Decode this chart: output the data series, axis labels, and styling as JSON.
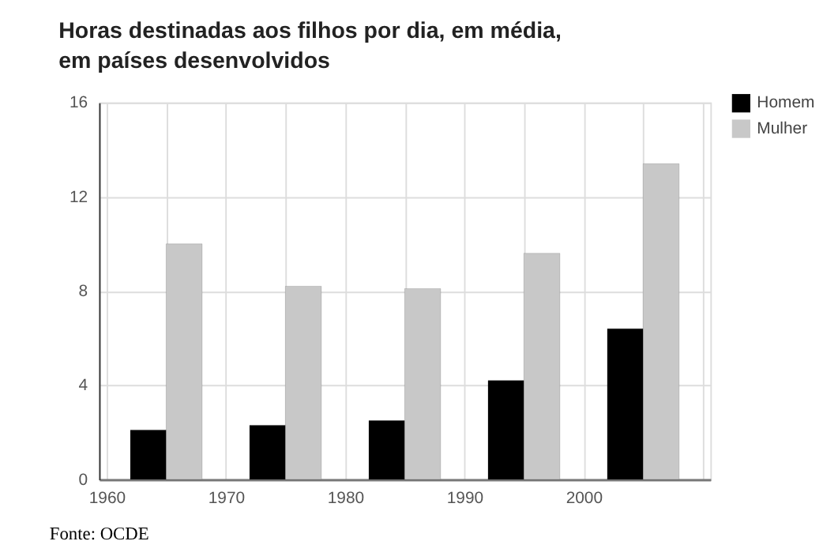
{
  "chart_data": {
    "type": "bar",
    "title": "Horas destinadas aos filhos por dia, em média,\nem países desenvolvidos",
    "series": [
      {
        "name": "Homem",
        "color": "#000000",
        "x": [
          1963.5,
          1973.5,
          1983.5,
          1993.5,
          2003.5
        ],
        "values": [
          2.1,
          2.3,
          2.5,
          4.2,
          6.4
        ]
      },
      {
        "name": "Mulher",
        "color": "#c8c8c8",
        "x": [
          1966.5,
          1976.5,
          1986.5,
          1996.5,
          2006.5
        ],
        "values": [
          10.0,
          8.2,
          8.1,
          9.6,
          13.4
        ]
      }
    ],
    "xlim": [
      1960,
      2010
    ],
    "xticks": [
      1960,
      {
        "value": 1965,
        "label": null
      },
      1970,
      {
        "value": 1975,
        "label": null
      },
      1980,
      {
        "value": 1985,
        "label": null
      },
      1990,
      {
        "value": 1995,
        "label": null
      },
      2000,
      {
        "value": 2005,
        "label": null
      },
      {
        "value": 2010,
        "label": null
      }
    ],
    "ylim": [
      0,
      16
    ],
    "yticks": [
      0,
      4,
      8,
      12,
      16
    ],
    "grid": true,
    "legend": "top right",
    "annotations": [
      "Fonte: OCDE"
    ]
  }
}
